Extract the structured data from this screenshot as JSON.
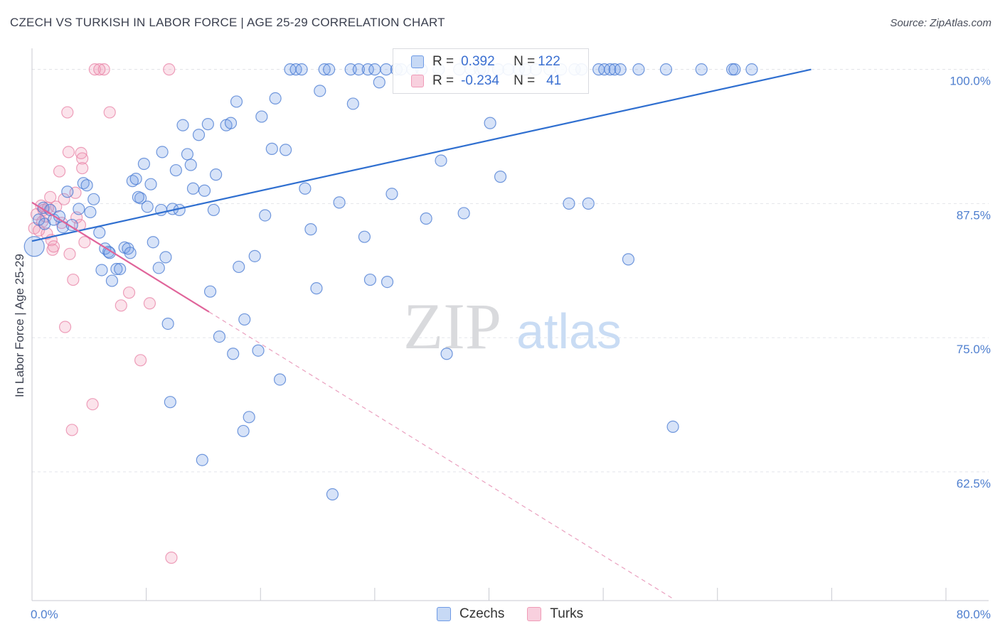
{
  "title": "CZECH VS TURKISH IN LABOR FORCE | AGE 25-29 CORRELATION CHART",
  "source": "Source: ZipAtlas.com",
  "watermark": {
    "zip": "ZIP",
    "atlas": "atlas"
  },
  "colors": {
    "czech": "#6f9be6",
    "turk": "#f09bb7",
    "czech_line": "#2f6fd0",
    "turk_line": "#e0649a",
    "tick": "#4f7fcf"
  },
  "legend": {
    "rows": [
      {
        "r_label": "R =",
        "r_value": "0.392",
        "n_label": "N =",
        "n_value": "122"
      },
      {
        "r_label": "R =",
        "r_value": "-0.234",
        "n_label": "N =",
        "n_value": "41"
      }
    ]
  },
  "bottom_legend": {
    "czechs": "Czechs",
    "turks": "Turks"
  },
  "chart_data": {
    "type": "scatter",
    "title": "CZECH VS TURKISH IN LABOR FORCE | AGE 25-29 CORRELATION CHART",
    "xlabel": "",
    "ylabel": "In Labor Force | Age 25-29",
    "xlim": [
      0,
      80
    ],
    "ylim": [
      50.5,
      101.5
    ],
    "x_tick_labels": [
      "0.0%",
      "80.0%"
    ],
    "y_ticks": [
      62.5,
      75.0,
      87.5,
      100.0
    ],
    "y_tick_labels": [
      "62.5%",
      "75.0%",
      "87.5%",
      "100.0%"
    ],
    "series": [
      {
        "name": "Czechs",
        "r": 0.392,
        "n": 122,
        "trend": {
          "x0": 0,
          "y0": 84.0,
          "x1": 68.2,
          "y1": 100.0,
          "dashed_to_x": null
        },
        "points": [
          [
            0.2,
            83.5
          ],
          [
            0.6,
            86.0
          ],
          [
            1.0,
            87.1
          ],
          [
            1.1,
            85.6
          ],
          [
            1.6,
            86.9
          ],
          [
            1.9,
            86.0
          ],
          [
            2.4,
            86.3
          ],
          [
            2.7,
            85.3
          ],
          [
            3.1,
            88.6
          ],
          [
            3.5,
            85.5
          ],
          [
            4.1,
            87.0
          ],
          [
            4.5,
            89.4
          ],
          [
            4.8,
            89.2
          ],
          [
            5.1,
            86.7
          ],
          [
            5.4,
            87.9
          ],
          [
            5.9,
            84.8
          ],
          [
            6.1,
            81.3
          ],
          [
            6.4,
            83.3
          ],
          [
            6.7,
            83.0
          ],
          [
            7.0,
            80.3
          ],
          [
            7.4,
            81.4
          ],
          [
            7.7,
            81.4
          ],
          [
            8.1,
            83.4
          ],
          [
            8.4,
            83.3
          ],
          [
            8.6,
            82.9
          ],
          [
            8.8,
            89.6
          ],
          [
            9.1,
            89.8
          ],
          [
            9.5,
            88.0
          ],
          [
            9.8,
            91.2
          ],
          [
            10.1,
            87.2
          ],
          [
            10.4,
            89.3
          ],
          [
            10.6,
            83.9
          ],
          [
            11.1,
            81.5
          ],
          [
            11.4,
            92.3
          ],
          [
            11.7,
            82.5
          ],
          [
            11.9,
            76.3
          ],
          [
            12.3,
            87.0
          ],
          [
            12.6,
            90.6
          ],
          [
            12.9,
            86.9
          ],
          [
            13.2,
            94.8
          ],
          [
            13.6,
            92.1
          ],
          [
            13.9,
            91.1
          ],
          [
            14.1,
            88.9
          ],
          [
            14.6,
            93.9
          ],
          [
            15.1,
            88.7
          ],
          [
            15.4,
            94.9
          ],
          [
            15.6,
            79.3
          ],
          [
            15.9,
            86.9
          ],
          [
            16.1,
            90.2
          ],
          [
            16.4,
            75.1
          ],
          [
            17.0,
            94.8
          ],
          [
            17.4,
            95.0
          ],
          [
            17.6,
            73.5
          ],
          [
            17.9,
            97.0
          ],
          [
            18.1,
            81.6
          ],
          [
            18.6,
            76.7
          ],
          [
            19.0,
            67.6
          ],
          [
            19.5,
            82.6
          ],
          [
            19.8,
            73.8
          ],
          [
            20.1,
            95.6
          ],
          [
            20.4,
            86.4
          ],
          [
            21.0,
            92.6
          ],
          [
            21.3,
            97.3
          ],
          [
            21.7,
            71.1
          ],
          [
            22.2,
            92.5
          ],
          [
            22.6,
            100.0
          ],
          [
            23.1,
            100.0
          ],
          [
            23.6,
            100.0
          ],
          [
            23.9,
            88.9
          ],
          [
            24.4,
            85.1
          ],
          [
            24.9,
            79.6
          ],
          [
            25.2,
            98.0
          ],
          [
            25.6,
            100.0
          ],
          [
            26.0,
            100.0
          ],
          [
            26.3,
            60.4
          ],
          [
            26.9,
            87.6
          ],
          [
            27.9,
            100.0
          ],
          [
            28.1,
            96.8
          ],
          [
            28.6,
            100.0
          ],
          [
            29.1,
            84.4
          ],
          [
            29.4,
            100.0
          ],
          [
            29.6,
            80.4
          ],
          [
            30.0,
            100.0
          ],
          [
            30.4,
            98.8
          ],
          [
            31.0,
            100.0
          ],
          [
            31.1,
            80.2
          ],
          [
            31.5,
            88.4
          ],
          [
            31.9,
            100.0
          ],
          [
            32.3,
            100.0
          ],
          [
            33.3,
            100.0
          ],
          [
            34.1,
            100.0
          ],
          [
            34.5,
            86.1
          ],
          [
            35.6,
            100.0
          ],
          [
            35.8,
            91.5
          ],
          [
            36.3,
            73.5
          ],
          [
            37.4,
            100.0
          ],
          [
            37.8,
            86.6
          ],
          [
            38.4,
            100.0
          ],
          [
            39.2,
            100.0
          ],
          [
            39.5,
            100.0
          ],
          [
            40.1,
            95.0
          ],
          [
            40.8,
            100.0
          ],
          [
            41.0,
            90.0
          ],
          [
            41.7,
            100.0
          ],
          [
            42.6,
            100.0
          ],
          [
            43.2,
            100.0
          ],
          [
            44.1,
            100.0
          ],
          [
            45.3,
            100.0
          ],
          [
            46.3,
            100.0
          ],
          [
            47.0,
            87.5
          ],
          [
            47.5,
            100.0
          ],
          [
            48.1,
            100.0
          ],
          [
            48.7,
            87.5
          ],
          [
            49.6,
            100.0
          ],
          [
            50.1,
            100.0
          ],
          [
            50.6,
            100.0
          ],
          [
            51.0,
            100.0
          ],
          [
            51.5,
            100.0
          ],
          [
            52.2,
            82.3
          ],
          [
            53.1,
            100.0
          ],
          [
            55.5,
            100.0
          ],
          [
            56.1,
            66.7
          ],
          [
            58.6,
            100.0
          ],
          [
            61.3,
            100.0
          ],
          [
            61.5,
            100.0
          ],
          [
            63.0,
            100.0
          ],
          [
            12.1,
            69.0
          ],
          [
            14.9,
            63.6
          ],
          [
            18.5,
            66.3
          ],
          [
            6.8,
            82.9
          ],
          [
            9.3,
            88.1
          ],
          [
            11.3,
            86.9
          ]
        ]
      },
      {
        "name": "Turks",
        "r": -0.234,
        "n": 41,
        "trend": {
          "x0": 0,
          "y0": 87.6,
          "x1": 15.5,
          "y1": 77.4,
          "dashed_to_x": 56.0
        },
        "points": [
          [
            0.2,
            85.2
          ],
          [
            0.4,
            86.5
          ],
          [
            0.6,
            85.0
          ],
          [
            0.8,
            87.3
          ],
          [
            0.9,
            85.8
          ],
          [
            1.0,
            86.9
          ],
          [
            1.2,
            86.3
          ],
          [
            1.3,
            84.7
          ],
          [
            1.4,
            87.1
          ],
          [
            1.6,
            88.1
          ],
          [
            1.7,
            84.1
          ],
          [
            1.8,
            83.2
          ],
          [
            1.9,
            83.5
          ],
          [
            2.1,
            87.2
          ],
          [
            2.4,
            90.5
          ],
          [
            2.6,
            85.7
          ],
          [
            2.8,
            87.9
          ],
          [
            2.9,
            76.0
          ],
          [
            3.1,
            96.0
          ],
          [
            3.2,
            92.3
          ],
          [
            3.3,
            82.8
          ],
          [
            3.5,
            66.4
          ],
          [
            3.6,
            80.4
          ],
          [
            3.8,
            88.5
          ],
          [
            3.9,
            86.2
          ],
          [
            4.2,
            85.5
          ],
          [
            4.3,
            92.2
          ],
          [
            4.4,
            91.7
          ],
          [
            4.4,
            90.8
          ],
          [
            4.6,
            83.9
          ],
          [
            5.3,
            68.8
          ],
          [
            5.5,
            100.0
          ],
          [
            6.3,
            100.0
          ],
          [
            6.8,
            96.0
          ],
          [
            7.8,
            78.0
          ],
          [
            8.5,
            79.2
          ],
          [
            9.5,
            72.9
          ],
          [
            10.3,
            78.2
          ],
          [
            12.0,
            100.0
          ],
          [
            12.2,
            54.5
          ],
          [
            5.9,
            100.0
          ]
        ]
      }
    ]
  }
}
